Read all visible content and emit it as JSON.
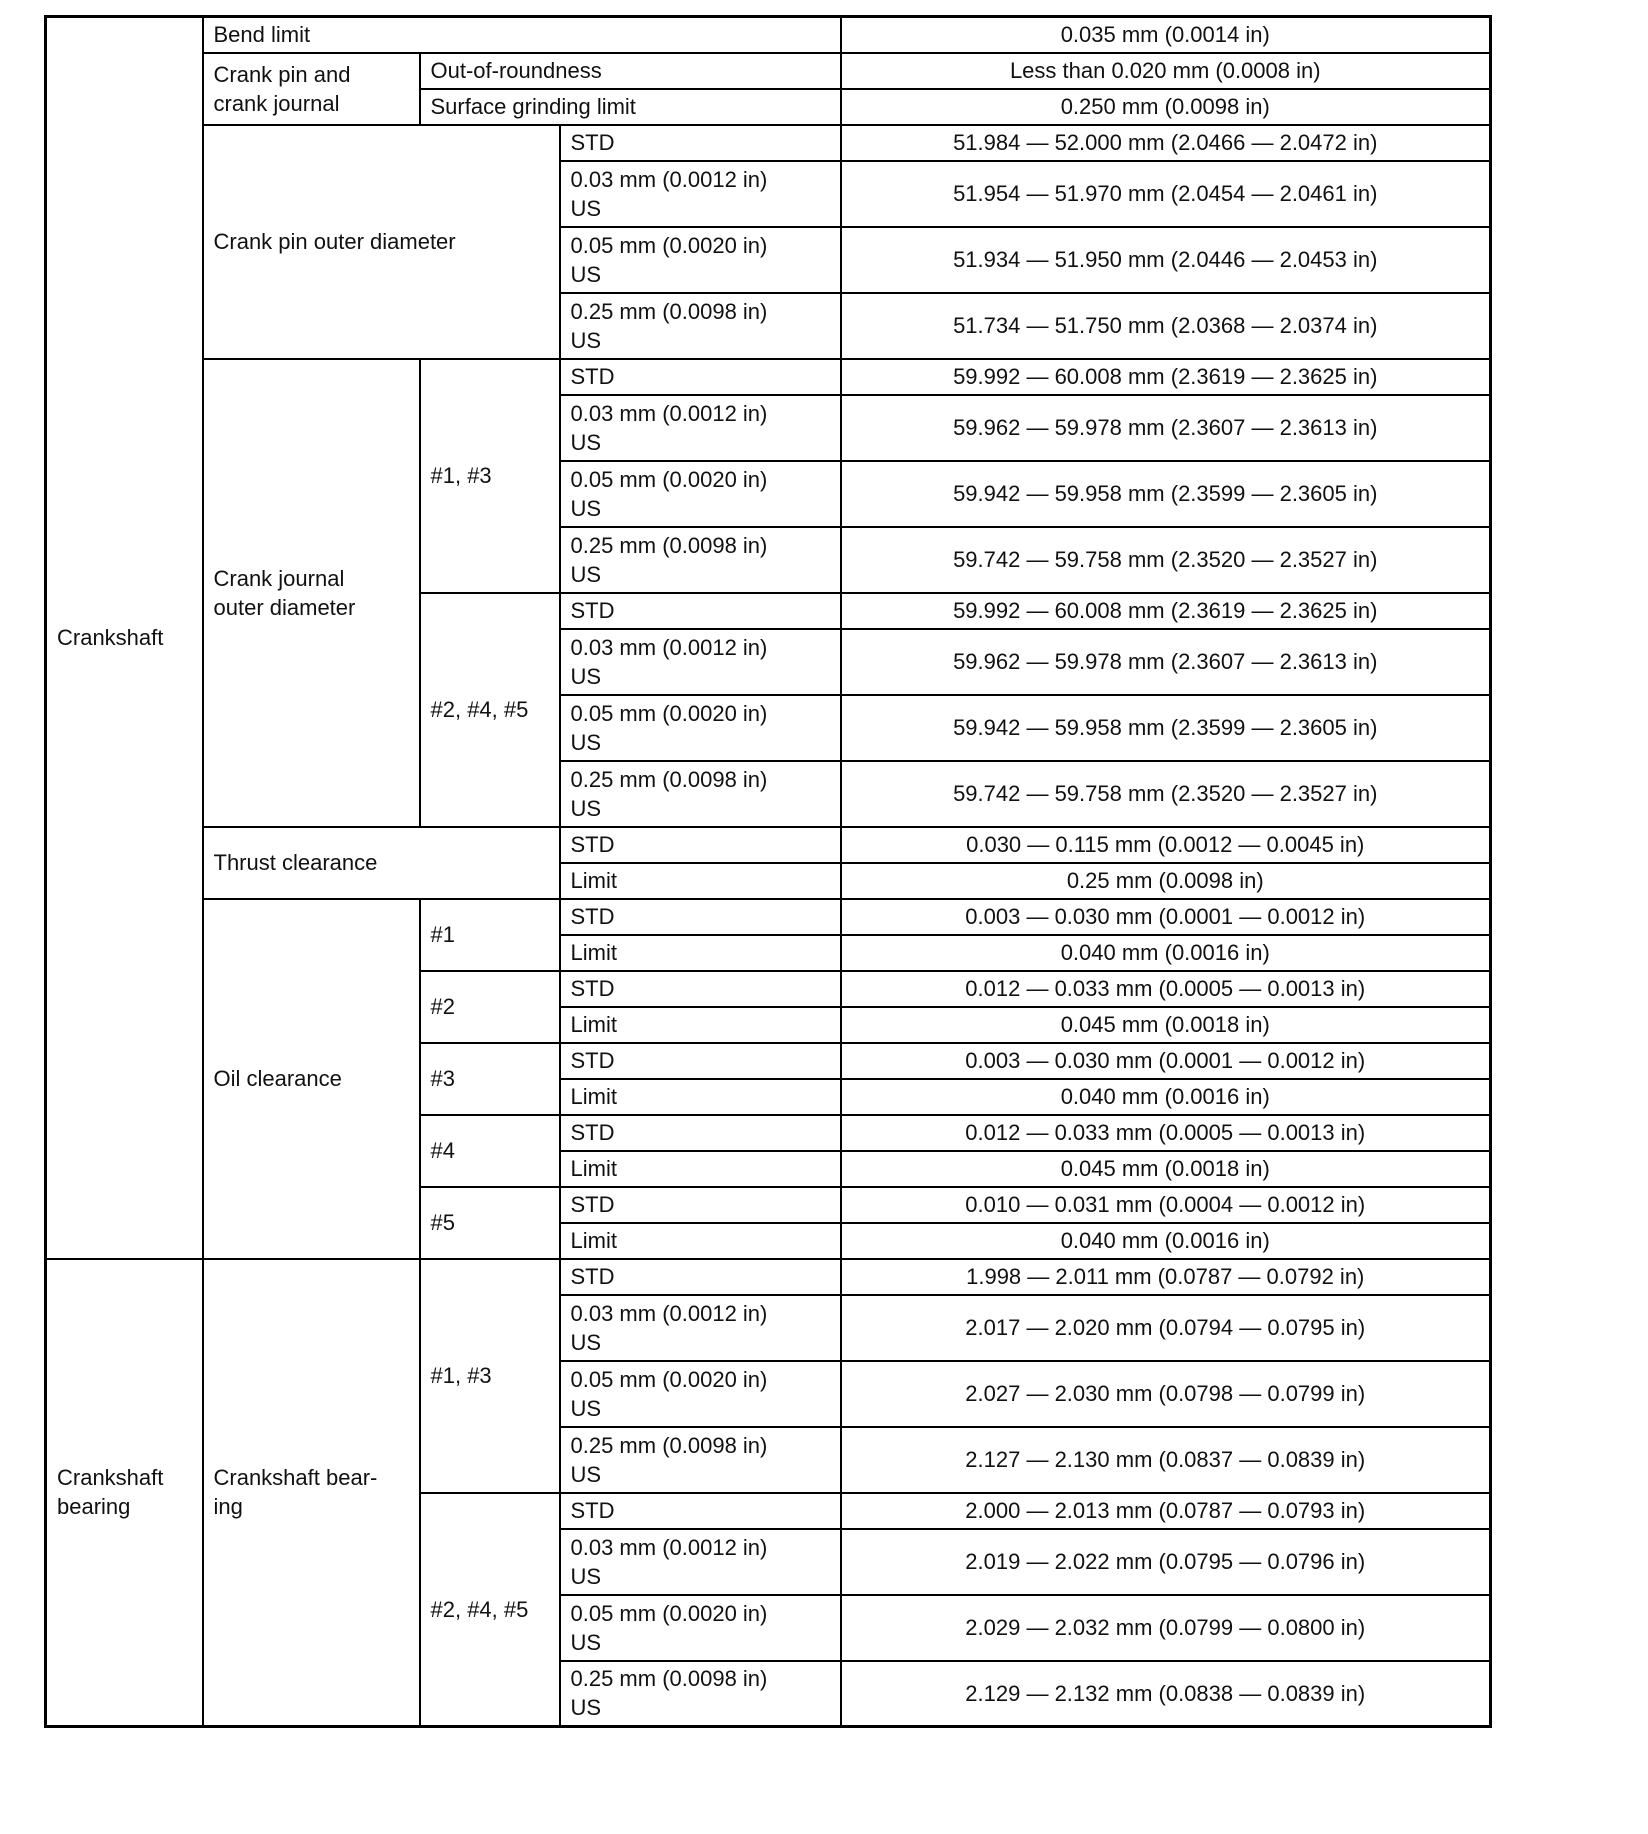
{
  "rows": [
    {
      "h": "s",
      "cells": [
        {
          "t": "Crankshaft",
          "rs": 27
        },
        {
          "t": "Bend limit",
          "cs": 3
        },
        {
          "t": "0.035 mm (0.0014 in)",
          "v": 1
        }
      ]
    },
    {
      "h": "s",
      "cells": [
        {
          "t": "Crank pin and\ncrank journal",
          "rs": 2
        },
        {
          "t": "Out-of-roundness",
          "cs": 2
        },
        {
          "t": "Less than 0.020 mm (0.0008 in)",
          "v": 1
        }
      ]
    },
    {
      "h": "s",
      "cells": [
        {
          "t": "Surface grinding limit",
          "cs": 2
        },
        {
          "t": "0.250 mm (0.0098 in)",
          "v": 1
        }
      ]
    },
    {
      "h": "s",
      "cells": [
        {
          "t": "Crank pin outer diameter",
          "cs": 2,
          "rs": 4
        },
        {
          "t": "STD"
        },
        {
          "t": "51.984 — 52.000 mm (2.0466 — 2.0472 in)",
          "v": 1
        }
      ]
    },
    {
      "h": "d",
      "cells": [
        {
          "t": "0.03 mm (0.0012 in)\nUS"
        },
        {
          "t": "51.954 — 51.970 mm (2.0454 — 2.0461 in)",
          "v": 1
        }
      ]
    },
    {
      "h": "d",
      "cells": [
        {
          "t": "0.05 mm (0.0020 in)\nUS"
        },
        {
          "t": "51.934 — 51.950 mm (2.0446 — 2.0453 in)",
          "v": 1
        }
      ]
    },
    {
      "h": "d",
      "cells": [
        {
          "t": "0.25 mm (0.0098 in)\nUS"
        },
        {
          "t": "51.734 — 51.750 mm (2.0368 — 2.0374 in)",
          "v": 1
        }
      ]
    },
    {
      "h": "s",
      "cells": [
        {
          "t": "Crank journal\nouter diameter",
          "rs": 8
        },
        {
          "t": "#1, #3",
          "rs": 4
        },
        {
          "t": "STD"
        },
        {
          "t": "59.992 — 60.008 mm (2.3619 — 2.3625 in)",
          "v": 1
        }
      ]
    },
    {
      "h": "d",
      "cells": [
        {
          "t": "0.03 mm (0.0012 in)\nUS"
        },
        {
          "t": "59.962 — 59.978 mm (2.3607 — 2.3613 in)",
          "v": 1
        }
      ]
    },
    {
      "h": "d",
      "cells": [
        {
          "t": "0.05 mm (0.0020 in)\nUS"
        },
        {
          "t": "59.942 — 59.958 mm (2.3599 — 2.3605 in)",
          "v": 1
        }
      ]
    },
    {
      "h": "d",
      "cells": [
        {
          "t": "0.25 mm (0.0098 in)\nUS"
        },
        {
          "t": "59.742 — 59.758 mm (2.3520 — 2.3527 in)",
          "v": 1
        }
      ]
    },
    {
      "h": "s",
      "cells": [
        {
          "t": "#2, #4, #5",
          "rs": 4
        },
        {
          "t": "STD"
        },
        {
          "t": "59.992 — 60.008 mm (2.3619 — 2.3625 in)",
          "v": 1
        }
      ]
    },
    {
      "h": "d",
      "cells": [
        {
          "t": "0.03 mm (0.0012 in)\nUS"
        },
        {
          "t": "59.962 — 59.978 mm (2.3607 — 2.3613 in)",
          "v": 1
        }
      ]
    },
    {
      "h": "d",
      "cells": [
        {
          "t": "0.05 mm (0.0020 in)\nUS"
        },
        {
          "t": "59.942 — 59.958 mm (2.3599 — 2.3605 in)",
          "v": 1
        }
      ]
    },
    {
      "h": "d",
      "cells": [
        {
          "t": "0.25 mm (0.0098 in)\nUS"
        },
        {
          "t": "59.742 — 59.758 mm (2.3520 — 2.3527 in)",
          "v": 1
        }
      ]
    },
    {
      "h": "s",
      "cells": [
        {
          "t": "Thrust clearance",
          "cs": 2,
          "rs": 2
        },
        {
          "t": "STD"
        },
        {
          "t": "0.030 — 0.115 mm (0.0012 — 0.0045 in)",
          "v": 1
        }
      ]
    },
    {
      "h": "s",
      "cells": [
        {
          "t": "Limit"
        },
        {
          "t": "0.25 mm (0.0098 in)",
          "v": 1
        }
      ]
    },
    {
      "h": "s",
      "cells": [
        {
          "t": "Oil clearance",
          "rs": 10
        },
        {
          "t": "#1",
          "rs": 2
        },
        {
          "t": "STD"
        },
        {
          "t": "0.003 — 0.030 mm (0.0001 — 0.0012 in)",
          "v": 1
        }
      ]
    },
    {
      "h": "s",
      "cells": [
        {
          "t": "Limit"
        },
        {
          "t": "0.040 mm (0.0016 in)",
          "v": 1
        }
      ]
    },
    {
      "h": "s",
      "cells": [
        {
          "t": "#2",
          "rs": 2
        },
        {
          "t": "STD"
        },
        {
          "t": "0.012 — 0.033 mm (0.0005 — 0.0013 in)",
          "v": 1
        }
      ]
    },
    {
      "h": "s",
      "cells": [
        {
          "t": "Limit"
        },
        {
          "t": "0.045 mm (0.0018 in)",
          "v": 1
        }
      ]
    },
    {
      "h": "s",
      "cells": [
        {
          "t": "#3",
          "rs": 2
        },
        {
          "t": "STD"
        },
        {
          "t": "0.003 — 0.030 mm (0.0001 — 0.0012 in)",
          "v": 1
        }
      ]
    },
    {
      "h": "s",
      "cells": [
        {
          "t": "Limit"
        },
        {
          "t": "0.040 mm (0.0016 in)",
          "v": 1
        }
      ]
    },
    {
      "h": "s",
      "cells": [
        {
          "t": "#4",
          "rs": 2
        },
        {
          "t": "STD"
        },
        {
          "t": "0.012 — 0.033 mm (0.0005 — 0.0013 in)",
          "v": 1
        }
      ]
    },
    {
      "h": "s",
      "cells": [
        {
          "t": "Limit"
        },
        {
          "t": "0.045 mm (0.0018 in)",
          "v": 1
        }
      ]
    },
    {
      "h": "s",
      "cells": [
        {
          "t": "#5",
          "rs": 2
        },
        {
          "t": "STD"
        },
        {
          "t": "0.010 — 0.031 mm (0.0004 — 0.0012 in)",
          "v": 1
        }
      ]
    },
    {
      "h": "s",
      "cells": [
        {
          "t": "Limit"
        },
        {
          "t": "0.040 mm (0.0016 in)",
          "v": 1
        }
      ]
    },
    {
      "h": "s",
      "cells": [
        {
          "t": "Crankshaft\nbearing",
          "rs": 8
        },
        {
          "t": "Crankshaft bear-\ning",
          "rs": 8
        },
        {
          "t": "#1, #3",
          "rs": 4
        },
        {
          "t": "STD"
        },
        {
          "t": "1.998 — 2.011 mm (0.0787 — 0.0792 in)",
          "v": 1
        }
      ]
    },
    {
      "h": "d",
      "cells": [
        {
          "t": "0.03 mm (0.0012 in)\nUS"
        },
        {
          "t": "2.017 — 2.020 mm (0.0794 — 0.0795 in)",
          "v": 1
        }
      ]
    },
    {
      "h": "d",
      "cells": [
        {
          "t": "0.05 mm (0.0020 in)\nUS"
        },
        {
          "t": "2.027 — 2.030 mm (0.0798 — 0.0799 in)",
          "v": 1
        }
      ]
    },
    {
      "h": "d",
      "cells": [
        {
          "t": "0.25 mm (0.0098 in)\nUS"
        },
        {
          "t": "2.127 — 2.130 mm (0.0837 — 0.0839 in)",
          "v": 1
        }
      ]
    },
    {
      "h": "s",
      "cells": [
        {
          "t": "#2, #4, #5",
          "rs": 4
        },
        {
          "t": "STD"
        },
        {
          "t": "2.000 — 2.013 mm (0.0787 — 0.0793 in)",
          "v": 1
        }
      ]
    },
    {
      "h": "d",
      "cells": [
        {
          "t": "0.03 mm (0.0012 in)\nUS"
        },
        {
          "t": "2.019 — 2.022 mm (0.0795 — 0.0796 in)",
          "v": 1
        }
      ]
    },
    {
      "h": "d",
      "cells": [
        {
          "t": "0.05 mm (0.0020 in)\nUS"
        },
        {
          "t": "2.029 — 2.032 mm (0.0799 — 0.0800 in)",
          "v": 1
        }
      ]
    },
    {
      "h": "d",
      "cells": [
        {
          "t": "0.25 mm (0.0098 in)\nUS"
        },
        {
          "t": "2.129 — 2.132 mm (0.0838 — 0.0839 in)",
          "v": 1
        }
      ]
    }
  ]
}
